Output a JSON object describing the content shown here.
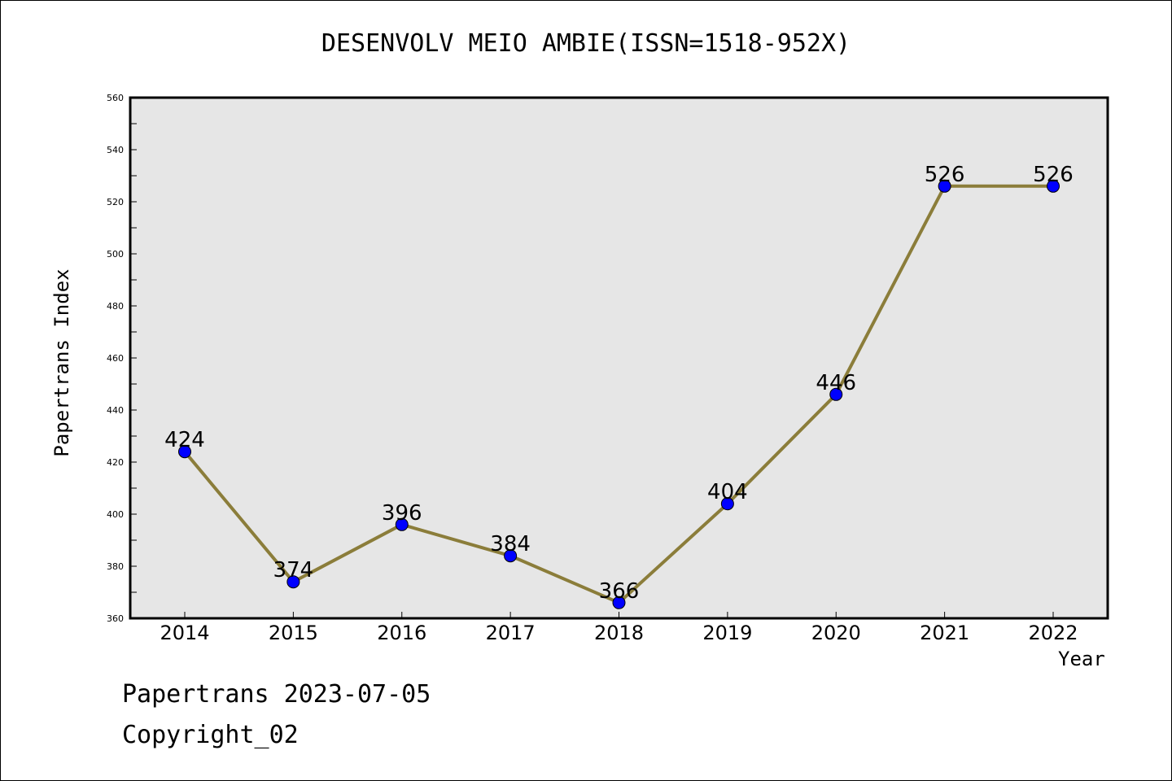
{
  "chart_data": {
    "type": "line",
    "title": "DESENVOLV MEIO AMBIE(ISSN=1518-952X)",
    "xlabel": "Year",
    "ylabel": "Papertrans Index",
    "categories": [
      "2014",
      "2015",
      "2016",
      "2017",
      "2018",
      "2019",
      "2020",
      "2021",
      "2022"
    ],
    "series": [
      {
        "name": "Papertrans Index",
        "values": [
          424,
          374,
          396,
          384,
          366,
          404,
          446,
          526,
          526
        ]
      }
    ],
    "ylim": [
      360,
      560
    ],
    "yticks": [
      "360",
      "380",
      "400",
      "420",
      "440",
      "460",
      "480",
      "500",
      "520",
      "540",
      "560"
    ],
    "grid": false,
    "colors": {
      "line": "#8b7d3a",
      "marker": "#0000ff",
      "plot_bg": "#e6e6e6"
    }
  },
  "footer": {
    "date_line": "Papertrans 2023-07-05",
    "copyright_line": "Copyright_02"
  }
}
